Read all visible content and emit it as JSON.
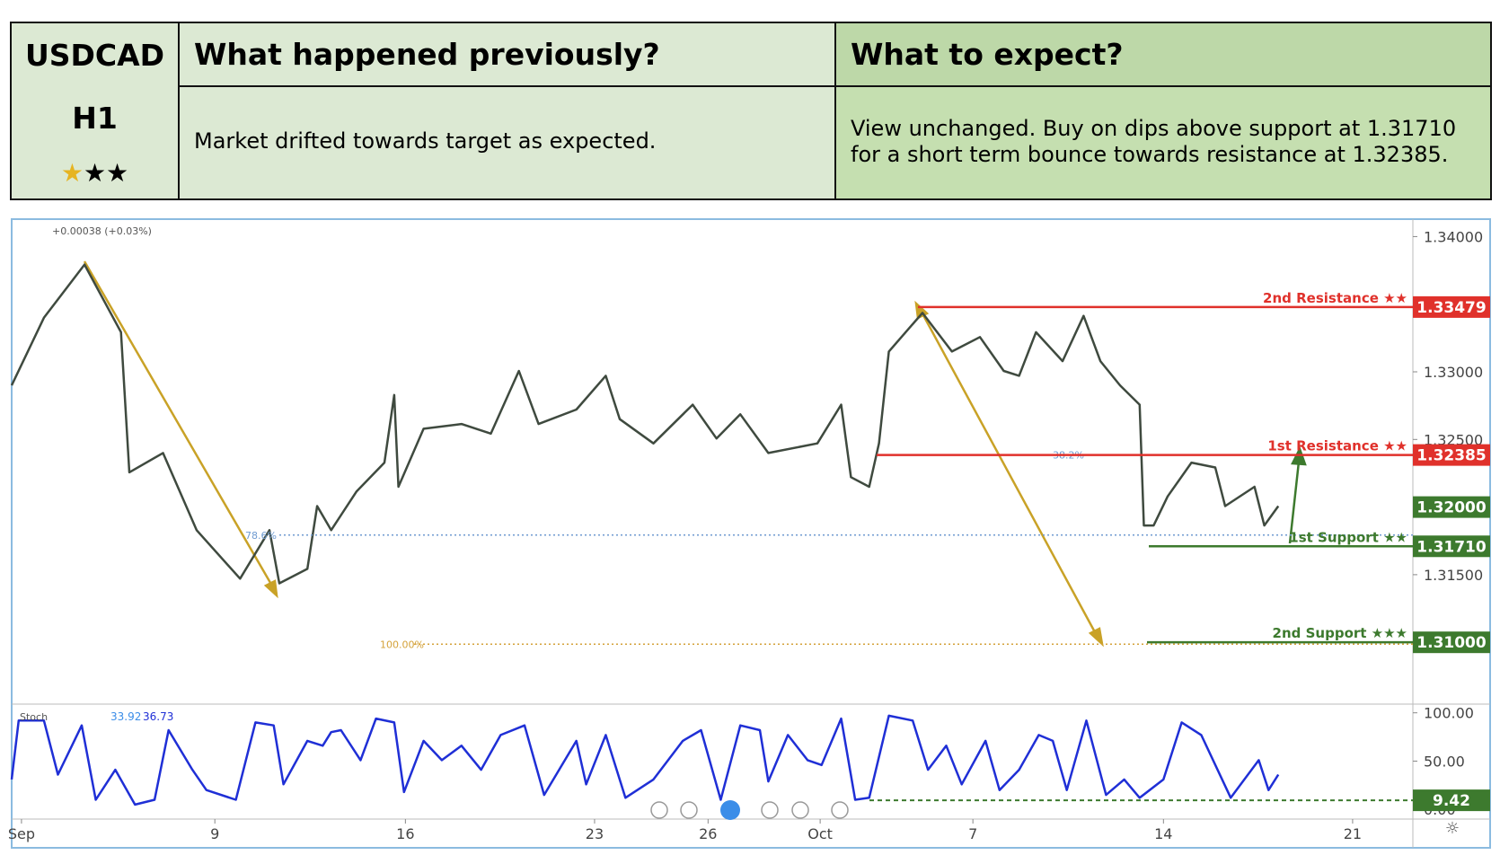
{
  "table": {
    "pair": "USDCAD",
    "timeframe": "H1",
    "headers": [
      "What happened previously?",
      "What to expect?"
    ],
    "cells": [
      "Market drifted towards target as expected.",
      "View unchanged. Buy on dips above support at 1.31710 for a short term bounce towards resistance at 1.32385."
    ]
  },
  "chart_data": [
    {
      "type": "line",
      "header": "+0.00038 (+0.03%)",
      "color": "#3f4a3f",
      "x": [
        0,
        2.3,
        5.2,
        7.8,
        8.4,
        10.8,
        13.2,
        16.3,
        18.4,
        19.1,
        21.1,
        21.8,
        22.8,
        24.6,
        26.6,
        27.3,
        27.6,
        29.4,
        32.1,
        34.2,
        36.2,
        37.6,
        40.3,
        42.4,
        43.4,
        45.8,
        48.6,
        50.3,
        52.0,
        54.0,
        57.5,
        59.2,
        59.9,
        61.2,
        61.9,
        62.6,
        65.0,
        67.1,
        69.1,
        70.8,
        71.9,
        73.1,
        75.0,
        76.5,
        77.7,
        79.1,
        80.5,
        80.8,
        81.5,
        82.5,
        84.2,
        85.9,
        86.6,
        88.7,
        89.4,
        90.4
      ],
      "values": [
        1.329,
        1.334,
        1.33793,
        1.33293,
        1.32257,
        1.324,
        1.31829,
        1.31471,
        1.31829,
        1.31436,
        1.31543,
        1.32007,
        1.31829,
        1.32114,
        1.32329,
        1.32829,
        1.3215,
        1.32579,
        1.32614,
        1.32543,
        1.33007,
        1.32614,
        1.32721,
        1.32971,
        1.3265,
        1.32471,
        1.32757,
        1.32507,
        1.32686,
        1.324,
        1.32471,
        1.32757,
        1.32221,
        1.3215,
        1.32471,
        1.3315,
        1.33436,
        1.3315,
        1.33257,
        1.33007,
        1.32971,
        1.33293,
        1.33079,
        1.33414,
        1.33079,
        1.329,
        1.32757,
        1.31864,
        1.31864,
        1.32079,
        1.32329,
        1.32293,
        1.32007,
        1.3215,
        1.31864,
        1.32007
      ],
      "xlim": [
        0,
        100
      ],
      "ylim": [
        1.30543,
        1.34129
      ],
      "yticks": [
        {
          "value": 1.34,
          "label": "1.34000"
        },
        {
          "value": 1.33,
          "label": "1.33000"
        },
        {
          "value": 1.325,
          "label": "1.32500"
        },
        {
          "value": 1.315,
          "label": "1.31500"
        }
      ],
      "levels": [
        {
          "label": "2nd Resistance ★★",
          "value": 1.33479,
          "value_label": "1.33479",
          "color": "#e0312b"
        },
        {
          "label": "1st Resistance ★★",
          "value": 1.32385,
          "value_label": "1.32385",
          "color": "#e0312b"
        },
        {
          "label": "1st Support ★★",
          "value": 1.3171,
          "value_label": "1.31710",
          "color": "#3d7a2e"
        },
        {
          "label": "2nd Support ★★★",
          "value": 1.31,
          "value_label": "1.31000",
          "color": "#3d7a2e"
        }
      ],
      "last_price": {
        "value": 1.32,
        "label": "1.32000",
        "color": "#3d7a2e"
      },
      "fibs": [
        {
          "label": "78.6%",
          "value": 1.31793,
          "color": "#6f9bd1"
        },
        {
          "label": "38.2%",
          "value": 1.32385,
          "color": "#6f9bd1"
        },
        {
          "label": "100.00%",
          "value": 1.30986,
          "color": "#d4a23a"
        }
      ]
    },
    {
      "type": "line",
      "title": "Stoch",
      "readings": [
        33.92,
        36.73
      ],
      "color": "#1f2fd6",
      "x": [
        0,
        0.5,
        2.3,
        3.3,
        5.0,
        6.0,
        7.4,
        8.8,
        10.2,
        11.2,
        12.9,
        13.9,
        16.0,
        17.4,
        18.7,
        19.4,
        21.1,
        22.2,
        22.8,
        23.5,
        24.9,
        26.0,
        27.3,
        28.0,
        29.4,
        30.7,
        32.1,
        33.5,
        34.9,
        36.6,
        38.0,
        40.3,
        41.0,
        42.4,
        43.8,
        45.8,
        47.9,
        49.2,
        50.6,
        52.0,
        53.4,
        54.0,
        55.4,
        56.8,
        57.8,
        59.2,
        60.2,
        61.2,
        62.6,
        64.3,
        65.4,
        66.7,
        67.8,
        69.5,
        70.5,
        71.9,
        73.3,
        74.3,
        75.3,
        76.7,
        78.1,
        79.4,
        80.5,
        82.2,
        83.5,
        84.9,
        87.0,
        89.0,
        89.7,
        90.4
      ],
      "values": [
        31,
        92,
        92,
        36,
        87,
        10,
        41,
        5,
        10,
        82,
        41,
        20,
        10,
        90,
        87,
        26,
        71,
        66,
        80,
        82,
        51,
        94,
        90,
        18,
        71,
        51,
        66,
        41,
        77,
        87,
        15,
        71,
        26,
        77,
        12,
        31,
        71,
        82,
        10,
        87,
        82,
        29,
        77,
        51,
        46,
        94,
        10,
        12,
        97,
        92,
        41,
        66,
        26,
        71,
        20,
        41,
        77,
        71,
        20,
        92,
        15,
        31,
        12,
        31,
        90,
        77,
        12,
        51,
        20,
        36
      ],
      "xlim": [
        0,
        100
      ],
      "ylim": [
        -10,
        109
      ],
      "yticks": [
        {
          "value": 100,
          "label": "100.00"
        },
        {
          "value": 50,
          "label": "50.00"
        },
        {
          "value": 0,
          "label": "0.00"
        }
      ],
      "level": {
        "value": 9.42,
        "label": "9.42",
        "color": "#3d7a2e"
      },
      "xticks": [
        {
          "value": 0.7,
          "label": "Sep"
        },
        {
          "value": 14.5,
          "label": "9"
        },
        {
          "value": 28.1,
          "label": "16"
        },
        {
          "value": 41.6,
          "label": "23"
        },
        {
          "value": 49.7,
          "label": "26"
        },
        {
          "value": 57.7,
          "label": "Oct"
        },
        {
          "value": 68.6,
          "label": "7"
        },
        {
          "value": 82.2,
          "label": "14"
        },
        {
          "value": 95.7,
          "label": "21"
        }
      ]
    }
  ]
}
